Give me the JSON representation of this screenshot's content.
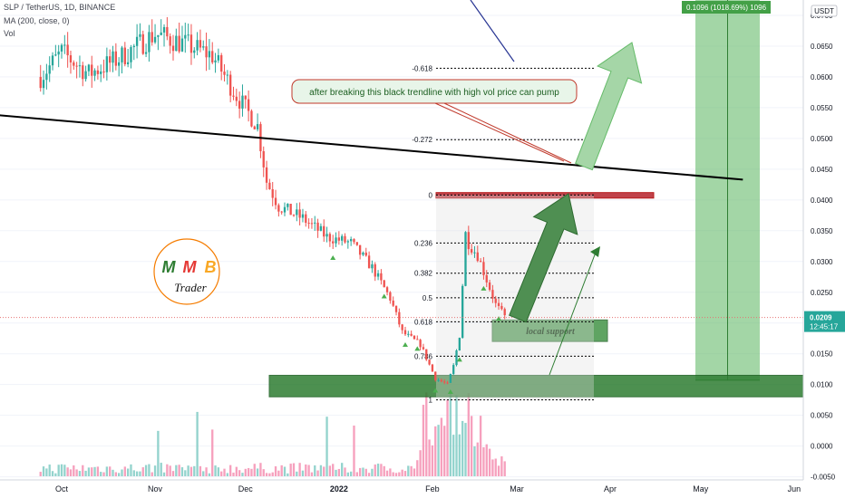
{
  "header": {
    "symbol_line": "SLP / TetherUS, 1D, BINANCE",
    "ma_line": "MA (200, close, 0)",
    "vol_line": "Vol"
  },
  "price_axis": {
    "unit": "USDT",
    "current_price": "0.0209",
    "countdown": "12:45:17"
  },
  "measure_label": "0.1096 (1018.69%) 1096",
  "callout_text": "after breaking this black trendline with high vol price can pump",
  "support_label": "local support",
  "logo": {
    "line1": [
      "M",
      "M",
      "B"
    ],
    "line2": "Trader"
  },
  "colors": {
    "up": "#26a69a",
    "down": "#ef5350",
    "zone_green": "#2e7d32",
    "resistance": "#b71c1c",
    "measure_green": "#66bb6a",
    "trendline": "#000000"
  },
  "chart_data": {
    "type": "candlestick",
    "x_axis": {
      "ticks": [
        "Oct",
        "Nov",
        "Dec",
        "2022",
        "Feb",
        "Mar",
        "Apr",
        "May",
        "Jun"
      ]
    },
    "y_axis": {
      "ticks": [
        "0.0700",
        "0.0650",
        "0.0600",
        "0.0550",
        "0.0500",
        "0.0450",
        "0.0400",
        "0.0350",
        "0.0300",
        "0.0250",
        "0.0200",
        "0.0150",
        "0.0100",
        "0.0050",
        "0.0000",
        "-0.0050"
      ],
      "range": [
        -0.0055,
        0.0725
      ]
    },
    "price_anchors": [
      [
        "2021-09-24",
        0.06
      ],
      [
        "2021-10-01",
        0.064
      ],
      [
        "2021-10-10",
        0.0605
      ],
      [
        "2021-10-20",
        0.063
      ],
      [
        "2021-11-01",
        0.067
      ],
      [
        "2021-11-10",
        0.0655
      ],
      [
        "2021-11-20",
        0.0635
      ],
      [
        "2021-11-28",
        0.057
      ],
      [
        "2021-12-05",
        0.052
      ],
      [
        "2021-12-08",
        0.043
      ],
      [
        "2021-12-12",
        0.039
      ],
      [
        "2021-12-20",
        0.037
      ],
      [
        "2021-12-28",
        0.034
      ],
      [
        "2022-01-05",
        0.033
      ],
      [
        "2022-01-12",
        0.029
      ],
      [
        "2022-01-18",
        0.024
      ],
      [
        "2022-01-22",
        0.0185
      ],
      [
        "2022-01-28",
        0.0165
      ],
      [
        "2022-02-02",
        0.011
      ],
      [
        "2022-02-06",
        0.01
      ],
      [
        "2022-02-08",
        0.013
      ],
      [
        "2022-02-10",
        0.018
      ],
      [
        "2022-02-12",
        0.0345
      ],
      [
        "2022-02-13",
        0.033
      ],
      [
        "2022-02-16",
        0.031
      ],
      [
        "2022-02-19",
        0.027
      ],
      [
        "2022-02-22",
        0.023
      ],
      [
        "2022-02-25",
        0.021
      ]
    ],
    "fibonacci": {
      "levels": [
        "-0.618",
        "-0.272",
        "0",
        "0.236",
        "0.382",
        "0.5",
        "0.618",
        "0.786",
        "1"
      ],
      "values": [
        0.0614,
        0.0498,
        0.0408,
        0.033,
        0.0281,
        0.0241,
        0.0202,
        0.0146,
        0.0075
      ]
    },
    "trendline": {
      "from": [
        "2021-09-24",
        0.0542
      ],
      "to": [
        "2022-05-15",
        0.0433
      ]
    },
    "resistance_zone": [
      0.0403,
      0.0412
    ],
    "support_zone": [
      0.008,
      0.0115
    ],
    "local_support_zone": [
      0.017,
      0.0205
    ],
    "measure": {
      "low": 0.0107,
      "high": 0.0728,
      "from": "2022-04-29",
      "to": "2022-05-20"
    },
    "current_price": 0.0209
  }
}
